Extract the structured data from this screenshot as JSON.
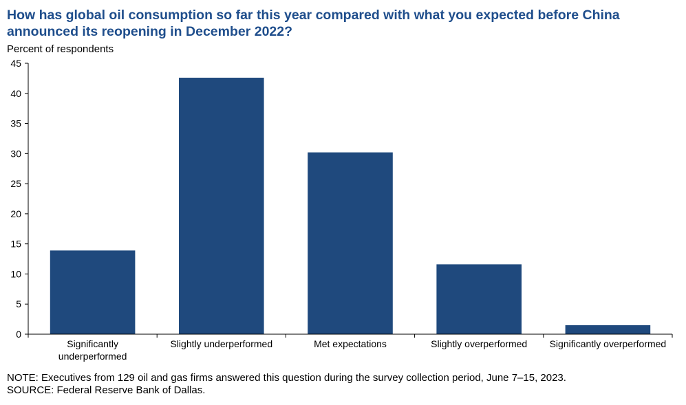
{
  "chart_data": {
    "type": "bar",
    "title": "How has global oil consumption so far this year compared with what you expected before China announced its reopening in December 2022?",
    "ylabel": "Percent of respondents",
    "xlabel": "",
    "categories": [
      [
        "Significantly",
        "underperformed"
      ],
      [
        "Slightly underperformed"
      ],
      [
        "Met expectations"
      ],
      [
        "Slightly overperformed"
      ],
      [
        "Significantly overperformed"
      ]
    ],
    "values": [
      13.9,
      42.6,
      30.2,
      11.6,
      1.5
    ],
    "ylim": [
      0,
      45
    ],
    "yticks": [
      0,
      5,
      10,
      15,
      20,
      25,
      30,
      35,
      40,
      45
    ],
    "grid": false,
    "bar_color": "#1f497d"
  },
  "notes": {
    "note": "NOTE:  Executives  from 129 oil and gas firms answered this question during the survey collection period, June 7–15, 2023.",
    "source": "SOURCE:  Federal Reserve Bank of Dallas."
  }
}
